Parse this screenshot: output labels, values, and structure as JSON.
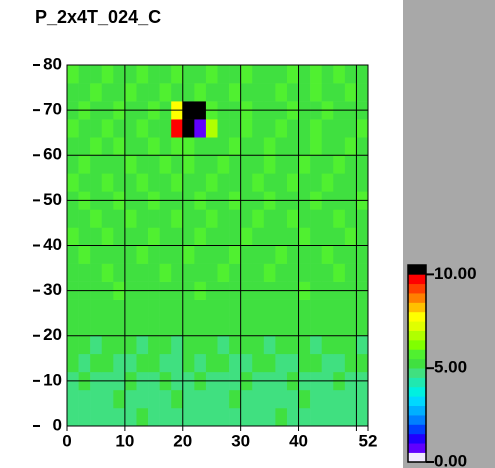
{
  "chart_data": {
    "type": "heatmap",
    "title": "P_2x4T_024_C",
    "xlim": [
      0,
      52
    ],
    "ylim": [
      0,
      80
    ],
    "xticks": [
      0,
      10,
      20,
      30,
      40,
      {
        "value": 50,
        "label": null
      },
      52
    ],
    "yticks": [
      0,
      10,
      20,
      30,
      40,
      50,
      60,
      70,
      80
    ],
    "grid": true,
    "colorscale": [
      "#f0e8ff",
      "#6000ff",
      "#2000ff",
      "#0040ff",
      "#0080ff",
      "#00b0ff",
      "#00d8ff",
      "#00f0e0",
      "#20e8b0",
      "#40e080",
      "#40e040",
      "#50f030",
      "#80ff00",
      "#b0ff00",
      "#e0ff00",
      "#ffff00",
      "#ffc000",
      "#ff8000",
      "#ff4000",
      "#ff0000",
      "#000000"
    ],
    "colorbar_lim": [
      0,
      10.5
    ],
    "colorbar_ticks": [
      {
        "value": 0,
        "label": "0.00"
      },
      {
        "value": 5,
        "label": "5.00"
      },
      {
        "value": 10,
        "label": "10.00"
      }
    ],
    "z": [
      [
        4.6,
        4.8,
        4.7,
        4.9,
        4.6,
        4.8,
        5.0,
        4.7,
        4.9,
        4.6,
        4.8,
        4.7,
        4.9,
        4.8,
        4.6,
        4.9,
        4.7,
        4.8,
        5.0,
        4.6,
        4.8,
        4.9,
        4.7,
        4.6,
        4.8,
        4.9
      ],
      [
        4.8,
        4.7,
        4.9,
        4.6,
        5.0,
        4.8,
        4.7,
        4.9,
        4.8,
        5.1,
        4.7,
        4.9,
        4.6,
        4.8,
        5.0,
        4.7,
        4.9,
        4.6,
        4.8,
        4.7,
        5.0,
        4.8,
        4.9,
        4.7,
        4.6,
        4.8
      ],
      [
        4.9,
        5.0,
        4.8,
        4.7,
        4.9,
        5.1,
        4.8,
        4.6,
        5.0,
        4.8,
        4.9,
        5.0,
        4.7,
        4.9,
        4.8,
        5.1,
        4.8,
        4.7,
        4.9,
        5.0,
        4.8,
        4.7,
        4.9,
        5.0,
        4.8,
        4.7
      ],
      [
        5.1,
        4.9,
        5.0,
        5.2,
        4.8,
        4.9,
        5.1,
        5.0,
        4.8,
        4.9,
        5.2,
        4.8,
        5.0,
        5.1,
        4.9,
        4.8,
        5.0,
        5.2,
        4.9,
        4.8,
        5.1,
        5.0,
        4.8,
        4.9,
        5.1,
        5.0
      ],
      [
        5.0,
        5.2,
        4.9,
        5.1,
        5.3,
        5.0,
        4.9,
        5.2,
        5.1,
        4.9,
        5.0,
        5.3,
        5.1,
        4.9,
        5.2,
        5.0,
        5.1,
        4.9,
        5.2,
        5.3,
        5.0,
        4.9,
        5.1,
        5.2,
        5.0,
        4.9
      ],
      [
        5.2,
        5.1,
        5.3,
        5.0,
        5.2,
        5.4,
        5.1,
        5.0,
        5.3,
        5.2,
        5.1,
        5.0,
        5.2,
        5.4,
        5.1,
        5.3,
        5.0,
        5.2,
        5.1,
        5.0,
        5.3,
        5.2,
        5.4,
        5.1,
        5.0,
        5.2
      ],
      [
        5.3,
        5.2,
        5.1,
        5.4,
        5.2,
        5.0,
        5.3,
        5.4,
        5.2,
        5.1,
        5.3,
        5.2,
        5.0,
        5.3,
        5.4,
        5.1,
        5.2,
        5.3,
        5.4,
        5.1,
        5.2,
        5.0,
        5.3,
        5.2,
        5.4,
        5.1
      ],
      [
        5.2,
        5.4,
        5.3,
        5.1,
        5.5,
        5.3,
        5.2,
        5.1,
        5.4,
        5.3,
        5.2,
        5.5,
        5.3,
        5.1,
        5.2,
        5.4,
        5.3,
        5.1,
        5.2,
        5.4,
        5.5,
        5.3,
        5.1,
        5.2,
        5.3,
        5.4
      ],
      [
        5.4,
        5.3,
        5.2,
        5.5,
        5.3,
        5.4,
        5.1,
        5.3,
        5.5,
        5.2,
        5.4,
        5.3,
        5.2,
        5.5,
        5.3,
        5.2,
        5.4,
        5.5,
        5.3,
        5.2,
        5.1,
        5.4,
        5.3,
        5.5,
        5.2,
        5.3
      ],
      [
        5.3,
        5.5,
        5.4,
        5.2,
        5.4,
        5.3,
        5.5,
        5.2,
        5.3,
        5.4,
        5.5,
        5.2,
        5.4,
        5.3,
        5.5,
        5.4,
        5.2,
        5.3,
        5.5,
        5.4,
        5.3,
        5.2,
        5.5,
        5.3,
        5.4,
        5.2
      ],
      [
        5.5,
        5.3,
        5.4,
        5.5,
        5.2,
        5.4,
        5.3,
        5.5,
        5.4,
        5.2,
        5.3,
        5.5,
        5.4,
        5.2,
        5.3,
        5.5,
        5.4,
        5.3,
        5.2,
        5.4,
        5.5,
        5.3,
        5.4,
        5.2,
        5.5,
        5.3
      ],
      [
        5.4,
        5.2,
        5.5,
        5.3,
        5.4,
        5.5,
        5.2,
        5.4,
        5.3,
        5.5,
        5.4,
        5.3,
        5.5,
        5.4,
        5.2,
        5.3,
        5.5,
        5.4,
        5.3,
        5.5,
        5.2,
        5.4,
        5.3,
        5.5,
        5.4,
        5.2
      ],
      [
        5.3,
        5.5,
        5.4,
        5.2,
        5.5,
        5.3,
        5.4,
        5.5,
        5.2,
        5.4,
        5.3,
        5.5,
        5.2,
        5.4,
        5.5,
        5.3,
        5.2,
        5.5,
        5.4,
        5.3,
        5.4,
        5.5,
        5.2,
        5.4,
        5.3,
        5.5
      ],
      [
        5.5,
        5.4,
        5.3,
        5.5,
        5.4,
        5.2,
        5.5,
        5.3,
        5.4,
        5.5,
        5.3,
        5.4,
        5.5,
        5.3,
        5.4,
        5.2,
        5.5,
        5.4,
        5.3,
        5.5,
        5.4,
        5.3,
        5.5,
        5.2,
        5.4,
        5.3
      ],
      [
        5.4,
        5.5,
        5.2,
        5.4,
        5.3,
        5.5,
        5.4,
        5.2,
        5.5,
        5.3,
        5.5,
        5.4,
        5.3,
        5.5,
        5.2,
        5.4,
        5.3,
        5.5,
        5.4,
        5.2,
        5.5,
        5.3,
        5.4,
        5.5,
        5.3,
        5.4
      ],
      [
        5.3,
        5.4,
        5.5,
        5.3,
        5.5,
        5.4,
        5.3,
        5.5,
        5.4,
        5.6,
        5.5,
        5.3,
        5.4,
        5.2,
        5.5,
        5.4,
        5.3,
        5.5,
        5.4,
        5.3,
        5.4,
        5.5,
        5.3,
        5.4,
        5.5,
        5.3
      ],
      [
        5.5,
        5.3,
        5.4,
        5.5,
        5.2,
        5.4,
        5.5,
        5.3,
        5.4,
        9.5,
        10.5,
        0.5,
        6.8,
        5.4,
        5.3,
        5.5,
        5.4,
        5.3,
        5.5,
        5.4,
        5.3,
        5.5,
        5.4,
        5.2,
        5.4,
        5.5
      ],
      [
        5.4,
        5.5,
        5.3,
        5.4,
        5.5,
        5.3,
        5.4,
        5.5,
        5.3,
        7.5,
        10.5,
        10.5,
        5.5,
        5.3,
        5.4,
        5.5,
        5.3,
        5.4,
        5.2,
        5.5,
        5.4,
        5.3,
        5.5,
        5.4,
        5.3,
        5.4
      ],
      [
        5.3,
        5.4,
        5.5,
        5.3,
        5.4,
        5.5,
        5.2,
        5.4,
        5.5,
        5.3,
        5.4,
        5.5,
        5.3,
        5.4,
        5.5,
        5.2,
        5.4,
        5.3,
        5.5,
        5.4,
        5.3,
        5.5,
        5.4,
        5.3,
        5.5,
        5.4
      ],
      [
        5.5,
        5.3,
        5.4,
        5.5,
        5.3,
        5.4,
        5.5,
        5.3,
        5.2,
        5.5,
        5.4,
        5.3,
        5.5,
        5.4,
        5.3,
        5.5,
        5.4,
        5.3,
        5.4,
        5.5,
        5.3,
        5.8,
        5.4,
        5.5,
        5.3,
        5.4
      ]
    ]
  }
}
